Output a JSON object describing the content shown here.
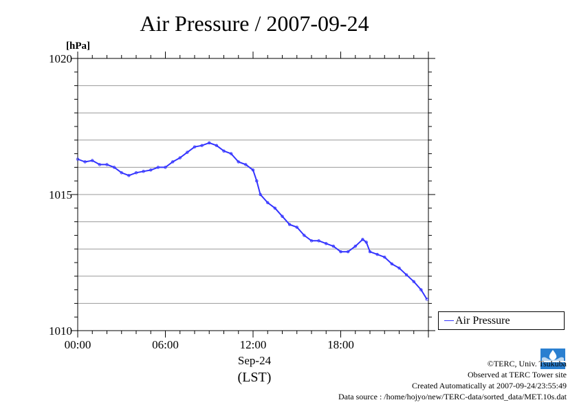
{
  "title": "Air Pressure / 2007-09-24",
  "chart_data": {
    "type": "line",
    "title": "Air Pressure / 2007-09-24",
    "ylabel": "[hPa]",
    "xlabel": "(LST)",
    "date_label": "Sep-24",
    "ylim": [
      1010,
      1020
    ],
    "xlim": [
      0,
      24
    ],
    "y_ticks": [
      "1010",
      "1015",
      "1020"
    ],
    "x_ticks": [
      "00:00",
      "06:00",
      "12:00",
      "18:00"
    ],
    "x_tick_hours": [
      0,
      6,
      12,
      18
    ],
    "grid": true,
    "legend_position": "right",
    "series": [
      {
        "name": "Air Pressure",
        "color": "#3333ff",
        "x": [
          0.0,
          0.5,
          1.0,
          1.5,
          2.0,
          2.5,
          3.0,
          3.5,
          4.0,
          4.5,
          5.0,
          5.5,
          6.0,
          6.5,
          7.0,
          7.5,
          8.0,
          8.5,
          9.0,
          9.5,
          10.0,
          10.5,
          11.0,
          11.5,
          12.0,
          12.25,
          12.5,
          13.0,
          13.5,
          14.0,
          14.5,
          15.0,
          15.5,
          16.0,
          16.5,
          17.0,
          17.5,
          18.0,
          18.5,
          19.0,
          19.5,
          19.75,
          20.0,
          20.5,
          21.0,
          21.5,
          22.0,
          22.5,
          23.0,
          23.5,
          23.9
        ],
        "y": [
          1016.3,
          1016.2,
          1016.25,
          1016.1,
          1016.1,
          1016.0,
          1015.8,
          1015.7,
          1015.8,
          1015.85,
          1015.9,
          1016.0,
          1016.0,
          1016.2,
          1016.35,
          1016.55,
          1016.75,
          1016.8,
          1016.9,
          1016.8,
          1016.6,
          1016.5,
          1016.2,
          1016.1,
          1015.9,
          1015.5,
          1015.0,
          1014.7,
          1014.5,
          1014.2,
          1013.9,
          1013.8,
          1013.5,
          1013.3,
          1013.3,
          1013.2,
          1013.1,
          1012.9,
          1012.9,
          1013.1,
          1013.35,
          1013.25,
          1012.9,
          1012.8,
          1012.7,
          1012.45,
          1012.3,
          1012.05,
          1011.8,
          1011.5,
          1011.15
        ]
      }
    ]
  },
  "legend": {
    "label": "Air Pressure"
  },
  "credits": {
    "copyright": "©TERC, Univ. Tsukuba",
    "observed": "Observed at TERC Tower site",
    "created": "Created Automatically at 2007-09-24/23:55:49",
    "source": "Data source : /home/hojyo/new/TERC-data/sorted_data/MET.10s.dat"
  },
  "logo_text": "TERC",
  "colors": {
    "series": "#3333ff",
    "grid": "#999999",
    "axis": "#000000"
  }
}
